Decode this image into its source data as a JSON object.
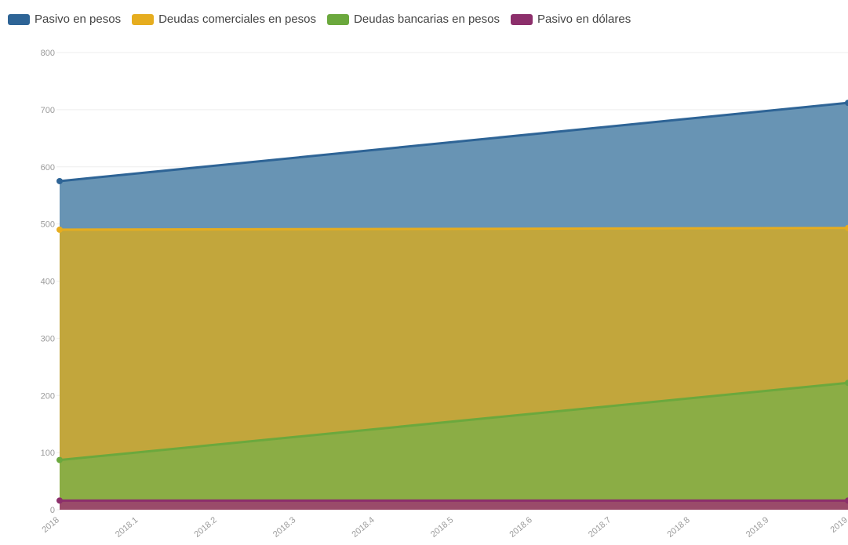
{
  "chart_data": {
    "type": "area",
    "stacked": true,
    "title": "",
    "xlabel": "",
    "ylabel": "",
    "x": [
      2018,
      2019
    ],
    "x_tick_labels": [
      "2018",
      "2018.1",
      "2018.2",
      "2018.3",
      "2018.4",
      "2018.5",
      "2018.6",
      "2018.7",
      "2018.8",
      "2018.9",
      "2019"
    ],
    "y_ticks": [
      "0",
      "100",
      "200",
      "300",
      "400",
      "500",
      "600",
      "700",
      "800"
    ],
    "ylim": [
      0,
      800
    ],
    "grid": true,
    "legend_position": "top-left",
    "series": [
      {
        "name": "Pasivo en pesos",
        "cumulative": [
          575,
          712
        ],
        "color": "#2e6496",
        "fill": "#6894b4"
      },
      {
        "name": "Deudas comerciales en pesos",
        "cumulative": [
          490,
          493
        ],
        "color": "#e6ad1f",
        "fill": "#c2a63c"
      },
      {
        "name": "Deudas bancarias en pesos",
        "cumulative": [
          87,
          222
        ],
        "color": "#6ba83d",
        "fill": "#8bad45"
      },
      {
        "name": "Pasivo en dólares",
        "cumulative": [
          16,
          16
        ],
        "color": "#8c2f6b",
        "fill": "#9a4b6a"
      }
    ]
  }
}
